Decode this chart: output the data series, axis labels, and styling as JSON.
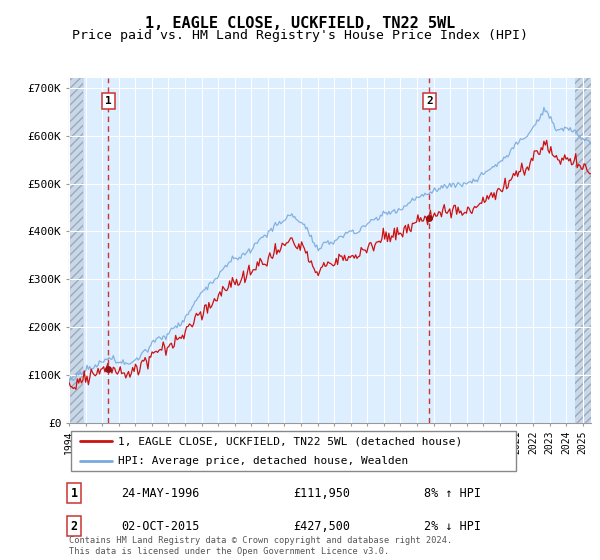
{
  "title": "1, EAGLE CLOSE, UCKFIELD, TN22 5WL",
  "subtitle": "Price paid vs. HM Land Registry's House Price Index (HPI)",
  "ylim": [
    0,
    720000
  ],
  "yticks": [
    0,
    100000,
    200000,
    300000,
    400000,
    500000,
    600000,
    700000
  ],
  "ytick_labels": [
    "£0",
    "£100K",
    "£200K",
    "£300K",
    "£400K",
    "£500K",
    "£600K",
    "£700K"
  ],
  "x_start_year": 1994,
  "x_end_year": 2025,
  "sale1_year": 1996.38,
  "sale1_price": 111950,
  "sale2_year": 2015.75,
  "sale2_price": 427500,
  "legend_line1": "1, EAGLE CLOSE, UCKFIELD, TN22 5WL (detached house)",
  "legend_line2": "HPI: Average price, detached house, Wealden",
  "annotation1_label": "1",
  "annotation1_date": "24-MAY-1996",
  "annotation1_price": "£111,950",
  "annotation1_hpi": "8% ↑ HPI",
  "annotation2_label": "2",
  "annotation2_date": "02-OCT-2015",
  "annotation2_price": "£427,500",
  "annotation2_hpi": "2% ↓ HPI",
  "footer": "Contains HM Land Registry data © Crown copyright and database right 2024.\nThis data is licensed under the Open Government Licence v3.0.",
  "hpi_color": "#7aaadd",
  "price_color": "#cc1111",
  "sale_marker_color": "#991111",
  "vline_color": "#cc3333",
  "background_color": "#ddeeff",
  "hatch_bg_color": "#c8d8e8",
  "grid_color": "#ffffff",
  "title_fontsize": 11,
  "subtitle_fontsize": 9.5
}
